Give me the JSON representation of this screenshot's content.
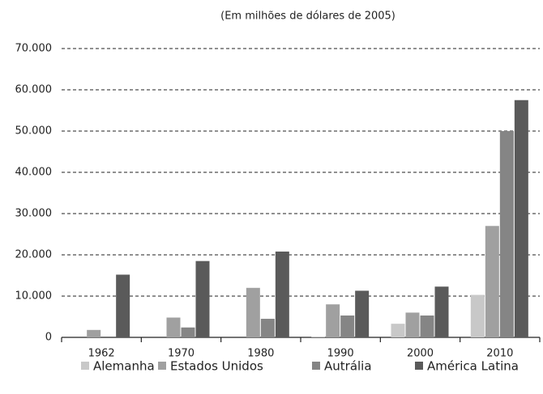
{
  "chart_data": {
    "type": "bar",
    "subtitle": "(Em milhões de dólares de 2005)",
    "categories": [
      "1962",
      "1970",
      "1980",
      "1990",
      "2000",
      "2010"
    ],
    "series": [
      {
        "name": "Alemanha",
        "color": "#c8c8c8",
        "values": [
          0,
          0,
          0,
          200,
          3300,
          10300
        ]
      },
      {
        "name": "Estados Unidos",
        "color": "#a0a0a0",
        "values": [
          1800,
          4800,
          12000,
          8000,
          6000,
          27000
        ]
      },
      {
        "name": "Autrália",
        "color": "#858585",
        "values": [
          0,
          2400,
          4500,
          5300,
          5300,
          50000
        ]
      },
      {
        "name": "América Latina",
        "color": "#5a5a5a",
        "values": [
          15200,
          18500,
          20800,
          11300,
          12300,
          57500
        ]
      }
    ],
    "ylim": [
      0,
      70000
    ],
    "yticks": [
      0,
      {
        "value": 10000,
        "label": "10.000"
      },
      {
        "value": 20000,
        "label": "20.000"
      },
      {
        "value": 30000,
        "label": "30.000"
      },
      {
        "value": 40000,
        "label": "40.000"
      },
      {
        "value": 50000,
        "label": "50.000"
      },
      {
        "value": 60000,
        "label": "60.000"
      },
      {
        "value": 70000,
        "label": "70.000"
      }
    ],
    "grid": true,
    "legend": "bottom"
  }
}
